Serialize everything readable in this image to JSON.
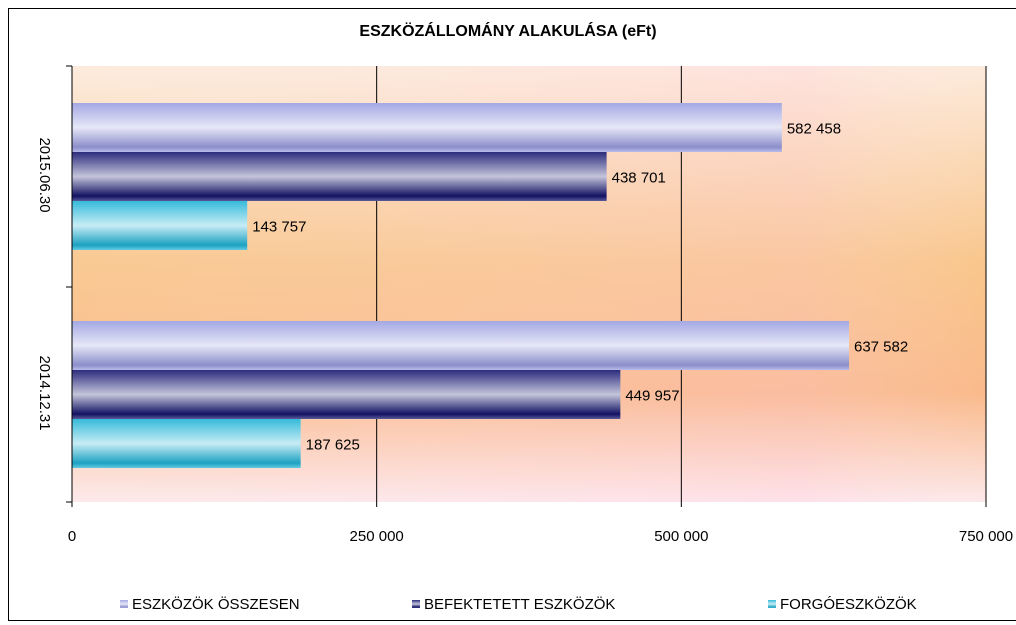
{
  "chart_data": {
    "type": "hbar",
    "title": "ESZKÖZÁLLOMÁNY ALAKULÁSA (eFt)",
    "categories": [
      "2015.06.30",
      "2014.12.31"
    ],
    "series": [
      {
        "name": "ESZKÖZÖK ÖSSZESEN",
        "color": "#9a9ee0",
        "values": [
          582458,
          637582
        ],
        "value_labels": [
          "582 458",
          "637 582"
        ]
      },
      {
        "name": "BEFEKTETETT ESZKÖZÖK",
        "color": "#14146e",
        "values": [
          438701,
          449957
        ],
        "value_labels": [
          "438 701",
          "449 957"
        ]
      },
      {
        "name": "FORGÓESZKÖZÖK",
        "color": "#1fb3d6",
        "values": [
          143757,
          187625
        ],
        "value_labels": [
          "143 757",
          "187 625"
        ]
      }
    ],
    "xlim": [
      0,
      750000
    ],
    "xticks": [
      0,
      {
        "value": 250000,
        "label": "250 000"
      },
      {
        "value": 500000,
        "label": "500 000"
      },
      {
        "value": 750000,
        "label": "750 000"
      }
    ],
    "grid": true,
    "legend": "bottom"
  }
}
